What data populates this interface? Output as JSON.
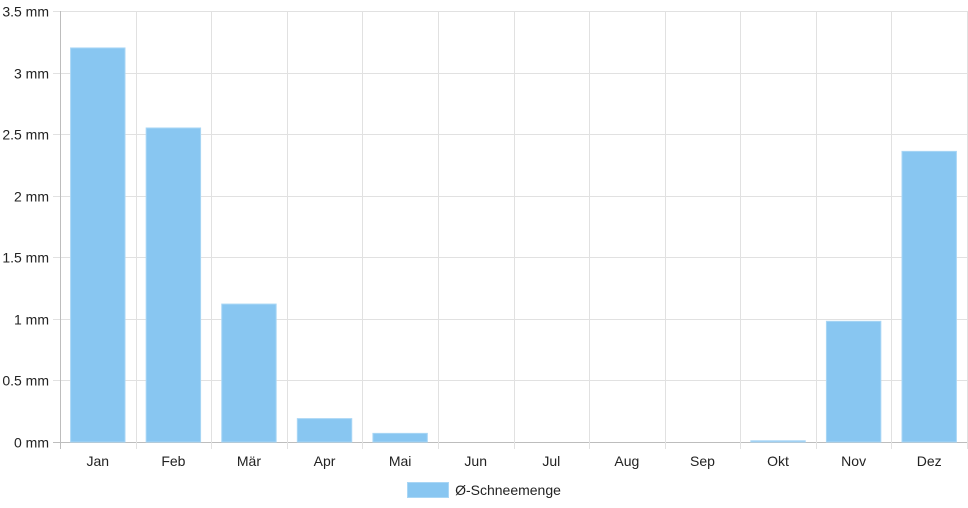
{
  "chart_data": {
    "type": "bar",
    "categories": [
      "Jan",
      "Feb",
      "Mär",
      "Apr",
      "Mai",
      "Jun",
      "Jul",
      "Aug",
      "Sep",
      "Okt",
      "Nov",
      "Dez"
    ],
    "series": [
      {
        "name": "Ø-Schneemenge",
        "values": [
          3.2,
          2.55,
          1.12,
          0.19,
          0.07,
          0,
          0,
          0,
          0,
          0.01,
          0.98,
          2.36
        ]
      }
    ],
    "ylim": [
      0,
      3.5
    ],
    "yticks": [
      0,
      0.5,
      1,
      1.5,
      2,
      2.5,
      3,
      3.5
    ],
    "ytick_labels": [
      "0 mm",
      "0.5 mm",
      "1 mm",
      "1.5 mm",
      "2 mm",
      "2.5 mm",
      "3 mm",
      "3.5 mm"
    ],
    "grid": true,
    "legend_position": "bottom-center",
    "colors": {
      "bar_fill": "#88c6f1",
      "bar_edge": "#a9d6f5",
      "grid": "#e1e1e1",
      "axis": "#bdbdbd"
    }
  }
}
